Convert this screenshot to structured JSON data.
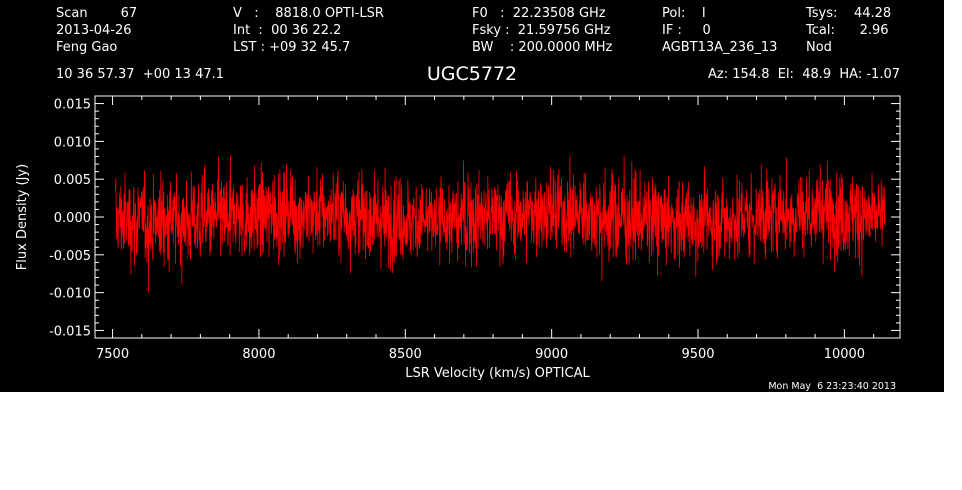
{
  "header": {
    "rows": [
      [
        "Scan        67",
        "V   :    8818.0 OPTI-LSR",
        "F0   :  22.23508 GHz",
        "Pol:    I",
        "Tsys:    44.28"
      ],
      [
        "2013-04-26",
        "Int  :  00 36 22.2",
        "Fsky :  21.59756 GHz",
        "IF :     0",
        "Tcal:      2.96"
      ],
      [
        "Feng Gao",
        "LST : +09 32 45.7",
        "BW    : 200.0000 MHz",
        "AGBT13A_236_13",
        "Nod"
      ]
    ],
    "coords": "10 36 57.37  +00 13 47.1",
    "source": "UGC5772",
    "pointing": "Az: 154.8  El:  48.9  HA: -1.07"
  },
  "footer": {
    "date": "Mon May  6 23:23:40 2013"
  },
  "chart_data": {
    "type": "line",
    "title": "UGC5772",
    "xlabel": "LSR Velocity (km/s) OPTICAL",
    "ylabel": "Flux Density (Jy)",
    "xlim": [
      7440,
      10190
    ],
    "ylim": [
      -0.016,
      0.016
    ],
    "x_ticks": [
      7500,
      8000,
      8500,
      9000,
      9500,
      10000
    ],
    "y_ticks": [
      -0.015,
      -0.01,
      -0.005,
      0.0,
      0.005,
      0.01,
      0.015
    ],
    "y_tick_labels": [
      "-0.015",
      "-0.010",
      "-0.005",
      "0.000",
      "0.005",
      "0.010",
      "0.015"
    ],
    "series": [
      {
        "color": "#ff0000",
        "x_start": 7510,
        "x_end": 10140,
        "noise_rms": 0.003,
        "peak_max": 0.0115,
        "trough_min": -0.0105
      }
    ],
    "axis_color": "#ffffff",
    "background": "#000000"
  }
}
